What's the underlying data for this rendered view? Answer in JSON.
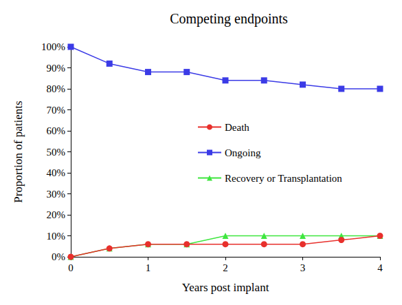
{
  "chart_data": {
    "type": "line",
    "title": "Competing endpoints",
    "x_label": "Years post implant",
    "y_label": "Proportion of patients",
    "x": [
      0,
      0.5,
      1,
      1.5,
      2,
      2.5,
      3,
      3.5,
      4
    ],
    "series": [
      {
        "name": "Death",
        "color": "#e8302c",
        "marker": "circle",
        "values": [
          0,
          4,
          6,
          6,
          6,
          6,
          6,
          8,
          10
        ]
      },
      {
        "name": "Ongoing",
        "color": "#3b3be6",
        "marker": "square",
        "values": [
          100,
          92,
          88,
          88,
          84,
          84,
          82,
          80,
          80
        ]
      },
      {
        "name": "Recovery or Transplantation",
        "color": "#3fe63f",
        "marker": "triangle",
        "values": [
          0,
          4,
          6,
          6,
          10,
          10,
          10,
          10,
          10
        ]
      }
    ],
    "xlim": [
      0,
      4
    ],
    "xticks": [
      0,
      1,
      2,
      3,
      4
    ],
    "ylim": [
      0,
      100
    ],
    "yticks": [
      {
        "value": 0,
        "label": "0%"
      },
      {
        "value": 10,
        "label": "10%"
      },
      {
        "value": 20,
        "label": "20%"
      },
      {
        "value": 30,
        "label": "30%"
      },
      {
        "value": 40,
        "label": "40%"
      },
      {
        "value": 50,
        "label": "50%"
      },
      {
        "value": 60,
        "label": "60%"
      },
      {
        "value": 70,
        "label": "70%"
      },
      {
        "value": 80,
        "label": "80%"
      },
      {
        "value": 90,
        "label": "90%"
      },
      {
        "value": 100,
        "label": "100%"
      }
    ],
    "grid": false,
    "legend": "right"
  }
}
